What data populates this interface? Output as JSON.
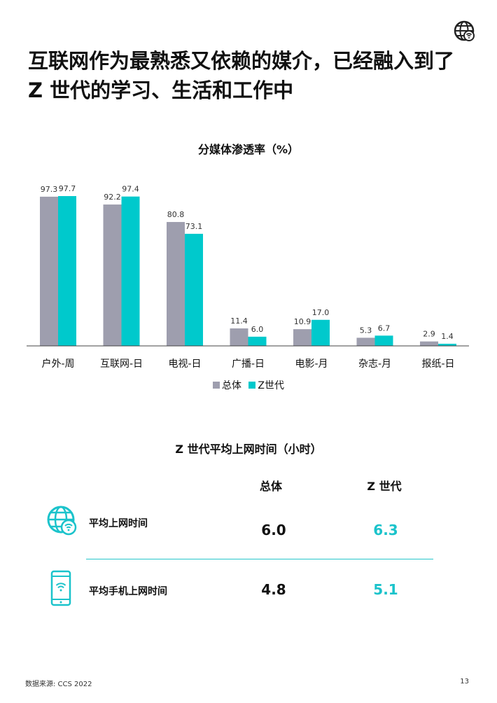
{
  "colors": {
    "overall": "#9e9eae",
    "genz": "#00c9cc",
    "teal_text": "#1bc3cb"
  },
  "header": {
    "headline_line1": "互联网作为最熟悉又依赖的媒介，已经融入到了",
    "headline_line2": "Z 世代的学习、生活和工作中",
    "icon": "globe-wifi-icon"
  },
  "chart_data": {
    "type": "bar",
    "title": "分媒体渗透率（%）",
    "categories": [
      "户外-周",
      "互联网-日",
      "电视-日",
      "广播-日",
      "电影-月",
      "杂志-月",
      "报纸-日"
    ],
    "series": [
      {
        "name": "总体",
        "values": [
          97.3,
          92.2,
          80.8,
          11.4,
          10.9,
          5.3,
          2.9
        ],
        "labels": [
          "97.3",
          "92.2",
          "80.8",
          "11.4",
          "10.9",
          "5.3",
          "2.9"
        ]
      },
      {
        "name": "Z世代",
        "values": [
          97.7,
          97.4,
          73.1,
          6.0,
          17.0,
          6.7,
          1.4
        ],
        "labels": [
          "97.7",
          "97.4",
          "73.1",
          "6.0",
          "17.0",
          "6.7",
          "1.4"
        ]
      }
    ],
    "ylim": [
      0,
      100
    ],
    "grid": false,
    "legend": "bottom-center"
  },
  "table": {
    "title": "Z 世代平均上网时间（小时）",
    "headers": [
      "总体",
      "Z 世代"
    ],
    "rows": [
      {
        "label": "平均上网时间",
        "icon": "globe-wifi-icon",
        "values": [
          "6.0",
          "6.3"
        ]
      },
      {
        "label": "平均手机上网时间",
        "icon": "mobile-phone-icon",
        "values": [
          "4.8",
          "5.1"
        ]
      }
    ]
  },
  "footer": {
    "source": "数据来源: CCS 2022",
    "page": "13"
  }
}
